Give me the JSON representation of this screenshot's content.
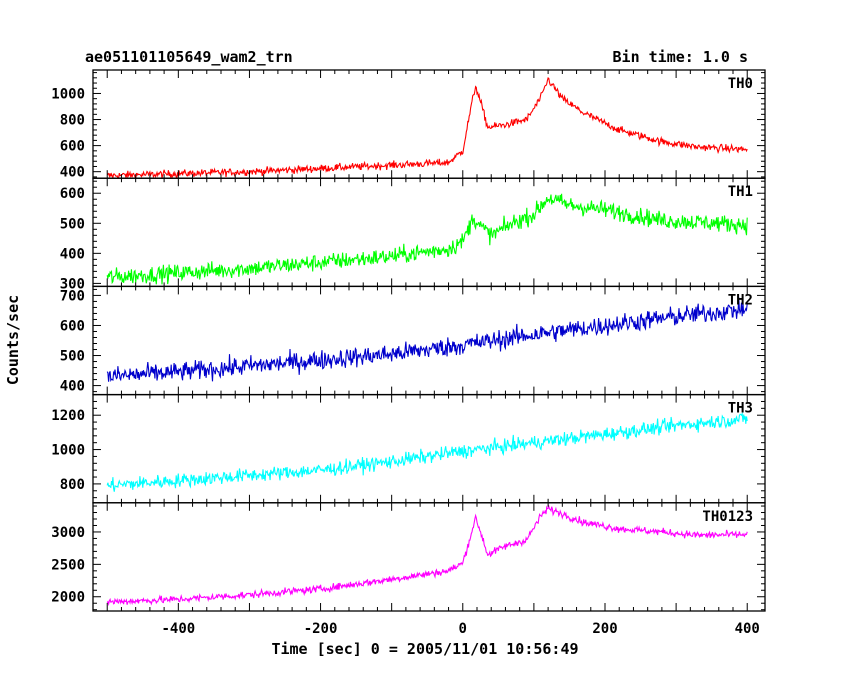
{
  "header": {
    "title": "ae051101105649_wam2_trn",
    "bin_time": "Bin time: 1.0 s"
  },
  "chart_data": {
    "type": "line",
    "xlabel": "Time [sec] 0 = 2005/11/01 10:56:49",
    "ylabel": "Counts/sec",
    "xlim": [
      -520,
      425
    ],
    "xticks": [
      -400,
      -200,
      0,
      200,
      400
    ],
    "x_start": -500,
    "x_end": 400,
    "grid": false,
    "panels": [
      {
        "name": "TH0",
        "color": "#ff0000",
        "ylim": [
          350,
          1180
        ],
        "yticks": [
          400,
          600,
          800,
          1000
        ],
        "envelope": [
          [
            -500,
            370
          ],
          [
            -400,
            385
          ],
          [
            -300,
            400
          ],
          [
            -200,
            425
          ],
          [
            -100,
            450
          ],
          [
            -20,
            470
          ],
          [
            0,
            560
          ],
          [
            10,
            850
          ],
          [
            18,
            1060
          ],
          [
            28,
            880
          ],
          [
            35,
            740
          ],
          [
            60,
            760
          ],
          [
            90,
            800
          ],
          [
            110,
            970
          ],
          [
            120,
            1110
          ],
          [
            140,
            960
          ],
          [
            170,
            850
          ],
          [
            220,
            720
          ],
          [
            280,
            630
          ],
          [
            330,
            590
          ],
          [
            400,
            570
          ]
        ],
        "noise": 28
      },
      {
        "name": "TH1",
        "color": "#00ff00",
        "ylim": [
          290,
          650
        ],
        "yticks": [
          300,
          400,
          500,
          600
        ],
        "envelope": [
          [
            -500,
            320
          ],
          [
            -400,
            335
          ],
          [
            -300,
            350
          ],
          [
            -200,
            370
          ],
          [
            -100,
            390
          ],
          [
            -20,
            415
          ],
          [
            0,
            440
          ],
          [
            15,
            520
          ],
          [
            25,
            490
          ],
          [
            40,
            460
          ],
          [
            70,
            500
          ],
          [
            100,
            530
          ],
          [
            120,
            585
          ],
          [
            150,
            560
          ],
          [
            200,
            545
          ],
          [
            280,
            510
          ],
          [
            400,
            495
          ]
        ],
        "noise": 28
      },
      {
        "name": "TH2",
        "color": "#0000cc",
        "ylim": [
          370,
          730
        ],
        "yticks": [
          400,
          500,
          600,
          700
        ],
        "envelope": [
          [
            -500,
            430
          ],
          [
            -400,
            445
          ],
          [
            -300,
            465
          ],
          [
            -200,
            485
          ],
          [
            -100,
            505
          ],
          [
            0,
            535
          ],
          [
            100,
            570
          ],
          [
            200,
            600
          ],
          [
            300,
            630
          ],
          [
            400,
            655
          ]
        ],
        "noise": 32
      },
      {
        "name": "TH3",
        "color": "#00ffff",
        "ylim": [
          690,
          1320
        ],
        "yticks": [
          800,
          1000,
          1200
        ],
        "envelope": [
          [
            -500,
            790
          ],
          [
            -400,
            820
          ],
          [
            -300,
            850
          ],
          [
            -200,
            880
          ],
          [
            -100,
            930
          ],
          [
            0,
            990
          ],
          [
            100,
            1040
          ],
          [
            200,
            1090
          ],
          [
            300,
            1140
          ],
          [
            400,
            1180
          ]
        ],
        "noise": 40
      },
      {
        "name": "TH0123",
        "color": "#ff00ff",
        "ylim": [
          1780,
          3450
        ],
        "yticks": [
          2000,
          2500,
          3000
        ],
        "envelope": [
          [
            -500,
            1920
          ],
          [
            -400,
            1960
          ],
          [
            -300,
            2030
          ],
          [
            -200,
            2120
          ],
          [
            -100,
            2270
          ],
          [
            -20,
            2400
          ],
          [
            0,
            2520
          ],
          [
            10,
            2900
          ],
          [
            18,
            3220
          ],
          [
            28,
            2900
          ],
          [
            35,
            2650
          ],
          [
            60,
            2780
          ],
          [
            90,
            2880
          ],
          [
            110,
            3250
          ],
          [
            120,
            3360
          ],
          [
            140,
            3280
          ],
          [
            170,
            3150
          ],
          [
            220,
            3050
          ],
          [
            280,
            3000
          ],
          [
            330,
            2950
          ],
          [
            400,
            2960
          ]
        ],
        "noise": 55
      }
    ]
  }
}
